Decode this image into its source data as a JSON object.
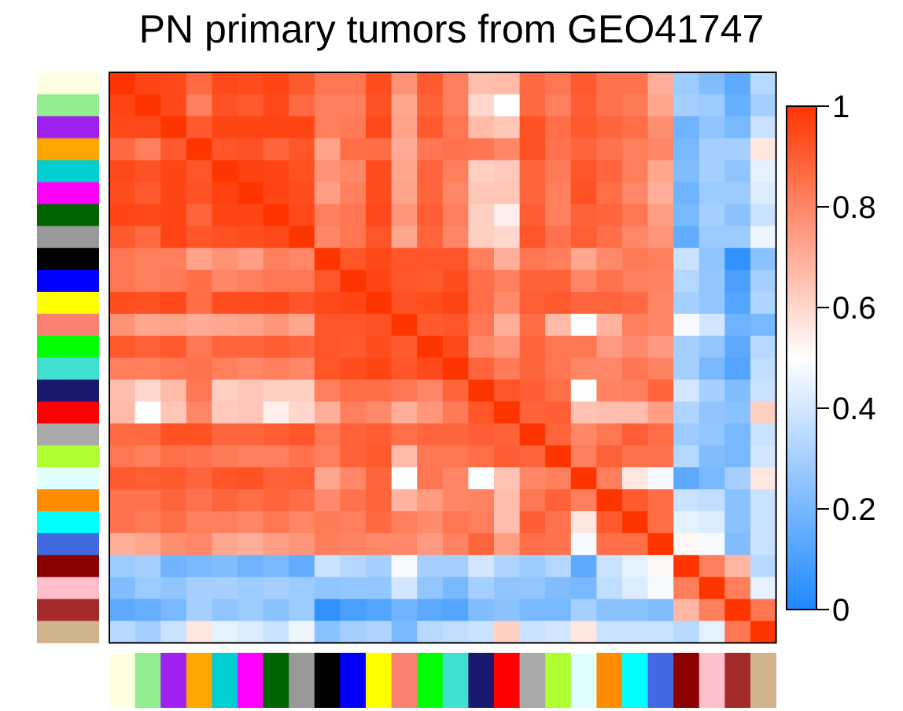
{
  "chart_data": {
    "type": "heatmap",
    "title": "PN primary tumors from GEO41747",
    "colorbar": {
      "range": [
        0,
        1
      ],
      "ticks": [
        {
          "value": 0,
          "label": "0"
        },
        {
          "value": 0.2,
          "label": "0.2"
        },
        {
          "value": 0.4,
          "label": "0.4"
        },
        {
          "value": 0.6,
          "label": "0.6"
        },
        {
          "value": 0.8,
          "label": "0.8"
        },
        {
          "value": 1,
          "label": "1"
        }
      ],
      "colors": {
        "low": "#1e88ff",
        "mid": "#ffffff",
        "high": "#ff3500"
      }
    },
    "sample_colors": [
      "#ffffe0",
      "#90ee90",
      "#a020f0",
      "#ffa500",
      "#00ced1",
      "#ff00ff",
      "#006400",
      "#999999",
      "#000000",
      "#0000ff",
      "#ffff00",
      "#fa8072",
      "#00ff00",
      "#40e0d0",
      "#191970",
      "#ff0000",
      "#a9a9a9",
      "#adff2f",
      "#e0ffff",
      "#ff8c00",
      "#00ffff",
      "#4169e1",
      "#8b0000",
      "#ffc0cb",
      "#a52a2a",
      "#d2b48c"
    ],
    "matrix": [
      [
        1.0,
        0.96,
        0.95,
        0.87,
        0.95,
        0.94,
        0.96,
        0.91,
        0.84,
        0.84,
        0.94,
        0.77,
        0.91,
        0.82,
        0.66,
        0.67,
        0.87,
        0.84,
        0.91,
        0.85,
        0.85,
        0.7,
        0.28,
        0.22,
        0.14,
        0.34
      ],
      [
        0.96,
        1.0,
        0.95,
        0.82,
        0.93,
        0.91,
        0.95,
        0.87,
        0.82,
        0.82,
        0.93,
        0.72,
        0.89,
        0.82,
        0.6,
        0.5,
        0.87,
        0.82,
        0.9,
        0.85,
        0.83,
        0.72,
        0.3,
        0.28,
        0.16,
        0.3
      ],
      [
        0.95,
        0.95,
        1.0,
        0.91,
        0.96,
        0.96,
        0.96,
        0.96,
        0.82,
        0.83,
        0.95,
        0.73,
        0.91,
        0.84,
        0.67,
        0.64,
        0.93,
        0.86,
        0.91,
        0.88,
        0.86,
        0.78,
        0.18,
        0.25,
        0.2,
        0.38
      ],
      [
        0.87,
        0.82,
        0.91,
        1.0,
        0.92,
        0.93,
        0.88,
        0.92,
        0.73,
        0.86,
        0.86,
        0.71,
        0.84,
        0.85,
        0.84,
        0.8,
        0.93,
        0.85,
        0.88,
        0.85,
        0.82,
        0.8,
        0.2,
        0.3,
        0.3,
        0.56
      ],
      [
        0.95,
        0.93,
        0.96,
        0.92,
        1.0,
        0.97,
        0.96,
        0.93,
        0.77,
        0.8,
        0.94,
        0.72,
        0.88,
        0.82,
        0.62,
        0.63,
        0.88,
        0.83,
        0.92,
        0.88,
        0.82,
        0.72,
        0.22,
        0.3,
        0.25,
        0.44
      ],
      [
        0.94,
        0.91,
        0.96,
        0.93,
        0.97,
        1.0,
        0.96,
        0.94,
        0.74,
        0.82,
        0.94,
        0.73,
        0.88,
        0.8,
        0.64,
        0.64,
        0.88,
        0.82,
        0.93,
        0.86,
        0.8,
        0.7,
        0.18,
        0.28,
        0.28,
        0.42
      ],
      [
        0.96,
        0.95,
        0.96,
        0.88,
        0.96,
        0.96,
        1.0,
        0.95,
        0.82,
        0.84,
        0.95,
        0.76,
        0.9,
        0.82,
        0.62,
        0.54,
        0.9,
        0.82,
        0.89,
        0.88,
        0.84,
        0.74,
        0.2,
        0.3,
        0.24,
        0.38
      ],
      [
        0.91,
        0.87,
        0.96,
        0.92,
        0.93,
        0.94,
        0.95,
        1.0,
        0.8,
        0.84,
        0.92,
        0.72,
        0.88,
        0.8,
        0.62,
        0.6,
        0.92,
        0.85,
        0.9,
        0.86,
        0.8,
        0.76,
        0.15,
        0.28,
        0.28,
        0.46
      ],
      [
        0.84,
        0.82,
        0.82,
        0.73,
        0.77,
        0.74,
        0.82,
        0.8,
        1.0,
        0.92,
        0.95,
        0.92,
        0.92,
        0.92,
        0.82,
        0.7,
        0.84,
        0.82,
        0.72,
        0.79,
        0.83,
        0.82,
        0.38,
        0.25,
        0.04,
        0.24
      ],
      [
        0.84,
        0.82,
        0.83,
        0.86,
        0.8,
        0.82,
        0.84,
        0.84,
        0.92,
        1.0,
        0.96,
        0.92,
        0.91,
        0.94,
        0.86,
        0.82,
        0.89,
        0.89,
        0.8,
        0.85,
        0.82,
        0.81,
        0.33,
        0.26,
        0.1,
        0.3
      ],
      [
        0.94,
        0.93,
        0.95,
        0.86,
        0.94,
        0.94,
        0.95,
        0.92,
        0.95,
        0.96,
        1.0,
        0.93,
        0.94,
        0.96,
        0.86,
        0.79,
        0.9,
        0.91,
        0.88,
        0.88,
        0.87,
        0.8,
        0.3,
        0.26,
        0.12,
        0.32
      ],
      [
        0.77,
        0.72,
        0.73,
        0.71,
        0.72,
        0.73,
        0.76,
        0.72,
        0.92,
        0.92,
        0.93,
        1.0,
        0.91,
        0.92,
        0.84,
        0.7,
        0.86,
        0.67,
        0.49,
        0.69,
        0.82,
        0.8,
        0.48,
        0.4,
        0.18,
        0.2
      ],
      [
        0.91,
        0.89,
        0.91,
        0.84,
        0.88,
        0.88,
        0.9,
        0.88,
        0.92,
        0.91,
        0.94,
        0.91,
        1.0,
        0.95,
        0.8,
        0.76,
        0.88,
        0.84,
        0.84,
        0.75,
        0.79,
        0.75,
        0.3,
        0.26,
        0.14,
        0.34
      ],
      [
        0.82,
        0.82,
        0.84,
        0.85,
        0.82,
        0.8,
        0.82,
        0.8,
        0.92,
        0.94,
        0.96,
        0.92,
        0.95,
        1.0,
        0.88,
        0.83,
        0.88,
        0.84,
        0.8,
        0.8,
        0.84,
        0.81,
        0.3,
        0.2,
        0.12,
        0.36
      ],
      [
        0.66,
        0.6,
        0.67,
        0.84,
        0.62,
        0.64,
        0.62,
        0.62,
        0.82,
        0.86,
        0.86,
        0.84,
        0.8,
        0.88,
        1.0,
        0.92,
        0.9,
        0.86,
        0.49,
        0.81,
        0.82,
        0.88,
        0.4,
        0.3,
        0.22,
        0.38
      ],
      [
        0.67,
        0.5,
        0.64,
        0.8,
        0.63,
        0.64,
        0.54,
        0.6,
        0.7,
        0.82,
        0.79,
        0.7,
        0.76,
        0.83,
        0.92,
        1.0,
        0.89,
        0.9,
        0.65,
        0.66,
        0.66,
        0.74,
        0.32,
        0.25,
        0.24,
        0.62
      ],
      [
        0.87,
        0.87,
        0.93,
        0.93,
        0.88,
        0.88,
        0.9,
        0.92,
        0.84,
        0.89,
        0.9,
        0.86,
        0.88,
        0.88,
        0.9,
        0.89,
        1.0,
        0.88,
        0.8,
        0.84,
        0.9,
        0.86,
        0.28,
        0.26,
        0.2,
        0.38
      ],
      [
        0.84,
        0.82,
        0.86,
        0.85,
        0.83,
        0.82,
        0.82,
        0.85,
        0.82,
        0.89,
        0.91,
        0.67,
        0.84,
        0.84,
        0.86,
        0.9,
        0.88,
        1.0,
        0.82,
        0.89,
        0.85,
        0.85,
        0.33,
        0.22,
        0.2,
        0.4
      ],
      [
        0.91,
        0.9,
        0.91,
        0.88,
        0.92,
        0.93,
        0.89,
        0.9,
        0.72,
        0.8,
        0.88,
        0.49,
        0.84,
        0.8,
        0.49,
        0.65,
        0.8,
        0.82,
        1.0,
        0.82,
        0.56,
        0.48,
        0.14,
        0.2,
        0.3,
        0.56
      ],
      [
        0.85,
        0.85,
        0.88,
        0.85,
        0.88,
        0.86,
        0.88,
        0.86,
        0.79,
        0.85,
        0.88,
        0.69,
        0.75,
        0.8,
        0.81,
        0.66,
        0.84,
        0.89,
        0.82,
        1.0,
        0.91,
        0.86,
        0.38,
        0.36,
        0.24,
        0.38
      ],
      [
        0.85,
        0.83,
        0.86,
        0.82,
        0.82,
        0.8,
        0.84,
        0.8,
        0.83,
        0.82,
        0.87,
        0.82,
        0.79,
        0.84,
        0.82,
        0.66,
        0.9,
        0.85,
        0.56,
        0.91,
        1.0,
        0.86,
        0.44,
        0.42,
        0.24,
        0.38
      ],
      [
        0.7,
        0.72,
        0.78,
        0.8,
        0.72,
        0.7,
        0.74,
        0.76,
        0.82,
        0.81,
        0.8,
        0.8,
        0.75,
        0.81,
        0.88,
        0.74,
        0.86,
        0.85,
        0.48,
        0.86,
        0.86,
        1.0,
        0.52,
        0.48,
        0.22,
        0.38
      ],
      [
        0.28,
        0.3,
        0.18,
        0.2,
        0.22,
        0.18,
        0.2,
        0.15,
        0.38,
        0.33,
        0.3,
        0.48,
        0.3,
        0.3,
        0.4,
        0.32,
        0.28,
        0.33,
        0.14,
        0.38,
        0.44,
        0.52,
        1.0,
        0.82,
        0.68,
        0.34
      ],
      [
        0.22,
        0.28,
        0.25,
        0.3,
        0.3,
        0.28,
        0.3,
        0.28,
        0.25,
        0.26,
        0.26,
        0.4,
        0.26,
        0.2,
        0.3,
        0.25,
        0.26,
        0.22,
        0.2,
        0.36,
        0.42,
        0.48,
        0.82,
        1.0,
        0.82,
        0.44
      ],
      [
        0.14,
        0.16,
        0.2,
        0.3,
        0.25,
        0.28,
        0.24,
        0.28,
        0.04,
        0.1,
        0.12,
        0.18,
        0.14,
        0.12,
        0.22,
        0.24,
        0.2,
        0.2,
        0.3,
        0.24,
        0.24,
        0.22,
        0.68,
        0.82,
        1.0,
        0.84
      ],
      [
        0.34,
        0.3,
        0.38,
        0.56,
        0.44,
        0.42,
        0.38,
        0.46,
        0.24,
        0.3,
        0.32,
        0.2,
        0.34,
        0.36,
        0.38,
        0.62,
        0.38,
        0.4,
        0.56,
        0.38,
        0.38,
        0.38,
        0.34,
        0.44,
        0.84,
        1.0
      ]
    ]
  }
}
